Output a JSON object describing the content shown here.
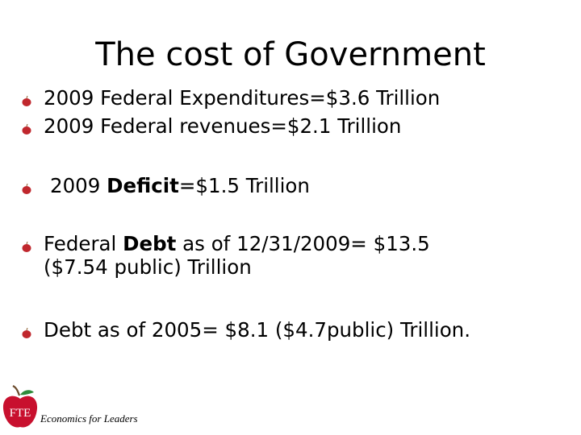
{
  "slide": {
    "title": "The cost of Government",
    "bullets": [
      {
        "parts": [
          {
            "text": "2009 Federal Expenditures=$3.6 Trillion",
            "bold": false
          }
        ]
      },
      {
        "parts": [
          {
            "text": "2009 Federal revenues=$2.1 Trillion",
            "bold": false
          }
        ]
      },
      {
        "parts": [
          {
            "text": "2009 ",
            "bold": false
          },
          {
            "text": "Deficit",
            "bold": true
          },
          {
            "text": "=$1.5 Trillion",
            "bold": false
          }
        ]
      },
      {
        "parts": [
          {
            "text": "Federal ",
            "bold": false
          },
          {
            "text": "Debt",
            "bold": true
          },
          {
            "text": " as of 12/31/2009= $13.5",
            "bold": false
          },
          {
            "text": "($7.54 public) Trillion",
            "bold": false,
            "newline": true
          }
        ]
      },
      {
        "parts": [
          {
            "text": "Debt as of 2005= $8.1 ($4.7public) Trillion.",
            "bold": false
          }
        ]
      }
    ],
    "logo_text": "FTE",
    "footer": "Economics for Leaders",
    "bullet_icon": "apple-icon",
    "colors": {
      "bullet": "#c0272d",
      "logo": "#c8102e",
      "text": "#000000"
    }
  }
}
